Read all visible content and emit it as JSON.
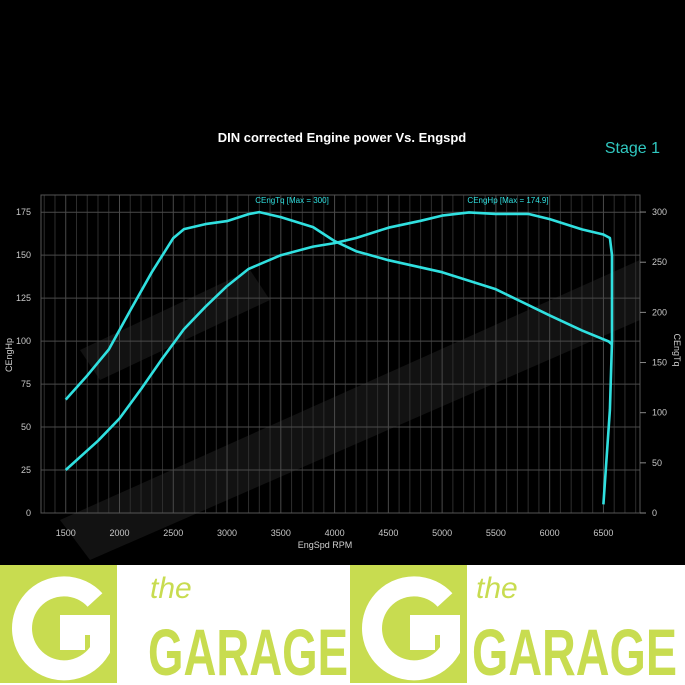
{
  "chart_data": {
    "type": "line",
    "title": "DIN corrected Engine power Vs. Engspd",
    "badge": "Stage 1",
    "xlabel": "EngSpd RPM",
    "ylabel_left": "CEngHp",
    "ylabel_right": "CEngTq",
    "xlim": [
      1270,
      6840
    ],
    "ylim_left": [
      0,
      185
    ],
    "ylim_right": [
      0,
      317
    ],
    "x_ticks": [
      1500,
      2000,
      2500,
      3000,
      3500,
      4000,
      4500,
      5000,
      5500,
      6000,
      6500
    ],
    "y_left_ticks": [
      0,
      25,
      50,
      75,
      100,
      125,
      150,
      175
    ],
    "y_right_ticks": [
      0,
      50,
      100,
      150,
      200,
      250,
      300
    ],
    "grid": true,
    "series": [
      {
        "name": "CEngTq",
        "annotation": "CEngTq [Max = 300]",
        "axis": "right",
        "color": "#30e0e0",
        "x": [
          1500,
          1700,
          1900,
          2100,
          2300,
          2500,
          2600,
          2800,
          3000,
          3200,
          3300,
          3500,
          3800,
          4000,
          4200,
          4500,
          5000,
          5500,
          6000,
          6300,
          6550,
          6580
        ],
        "y": [
          113,
          137,
          163,
          202,
          240,
          274,
          283,
          288,
          291,
          298,
          300,
          295,
          285,
          271,
          261,
          252,
          240,
          223,
          197,
          182,
          171,
          168
        ]
      },
      {
        "name": "CEngHp",
        "annotation": "CEngHp [Max = 174.9]",
        "axis": "left",
        "color": "#30e0e0",
        "x": [
          1500,
          1800,
          2000,
          2200,
          2400,
          2600,
          2800,
          3000,
          3200,
          3500,
          3800,
          4000,
          4200,
          4500,
          4800,
          5000,
          5250,
          5500,
          5800,
          6000,
          6300,
          6500,
          6560,
          6580,
          6580,
          6560,
          6500
        ],
        "y": [
          25,
          42,
          55,
          72,
          90,
          107,
          120,
          132,
          142,
          150,
          155,
          157,
          160,
          166,
          170,
          173,
          174.9,
          174,
          174,
          171,
          165,
          162,
          160,
          150,
          100,
          60,
          5
        ]
      }
    ]
  },
  "footer": {
    "logo_text_small": "the",
    "logo_text_large": "GARAGE",
    "logo_color": "#c8dc50"
  }
}
